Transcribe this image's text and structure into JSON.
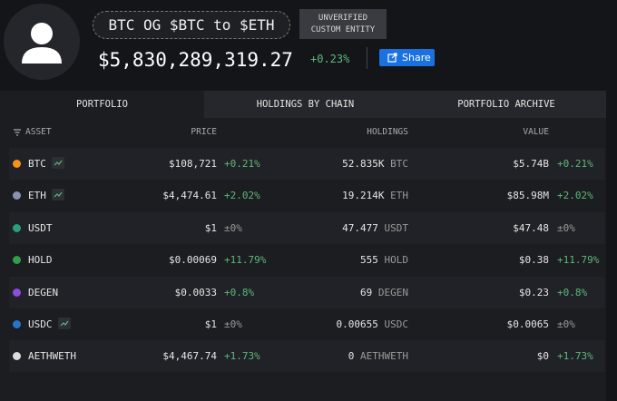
{
  "header": {
    "name": "BTC OG $BTC to $ETH",
    "badge": [
      "UNVERIFIED",
      "CUSTOM ENTITY"
    ],
    "total": "$5,830,289,319.27",
    "change": "+0.23%",
    "share": "Share"
  },
  "tabs": [
    "PORTFOLIO",
    "HOLDINGS BY CHAIN",
    "PORTFOLIO ARCHIVE"
  ],
  "table": {
    "columns": [
      "ASSET",
      "PRICE",
      "HOLDINGS",
      "VALUE"
    ],
    "rows": [
      [
        "BTC",
        "$108,721",
        "+0.21%",
        "52.835K",
        "BTC",
        "$5.74B",
        "+0.21%"
      ],
      [
        "ETH",
        "$4,474.61",
        "+2.02%",
        "19.214K",
        "ETH",
        "$85.98M",
        "+2.02%"
      ],
      [
        "USDT",
        "$1",
        "±0%",
        "47.477",
        "USDT",
        "$47.48",
        "±0%"
      ],
      [
        "HOLD",
        "$0.00069",
        "+11.79%",
        "555",
        "HOLD",
        "$0.38",
        "+11.79%"
      ],
      [
        "DEGEN",
        "$0.0033",
        "+0.8%",
        "69",
        "DEGEN",
        "$0.23",
        "+0.8%"
      ],
      [
        "USDC",
        "$1",
        "±0%",
        "0.00655",
        "USDC",
        "$0.0065",
        "±0%"
      ],
      [
        "AETHWETH",
        "$4,467.74",
        "+1.73%",
        "0",
        "AETHWETH",
        "$0",
        "+1.73%"
      ]
    ]
  }
}
